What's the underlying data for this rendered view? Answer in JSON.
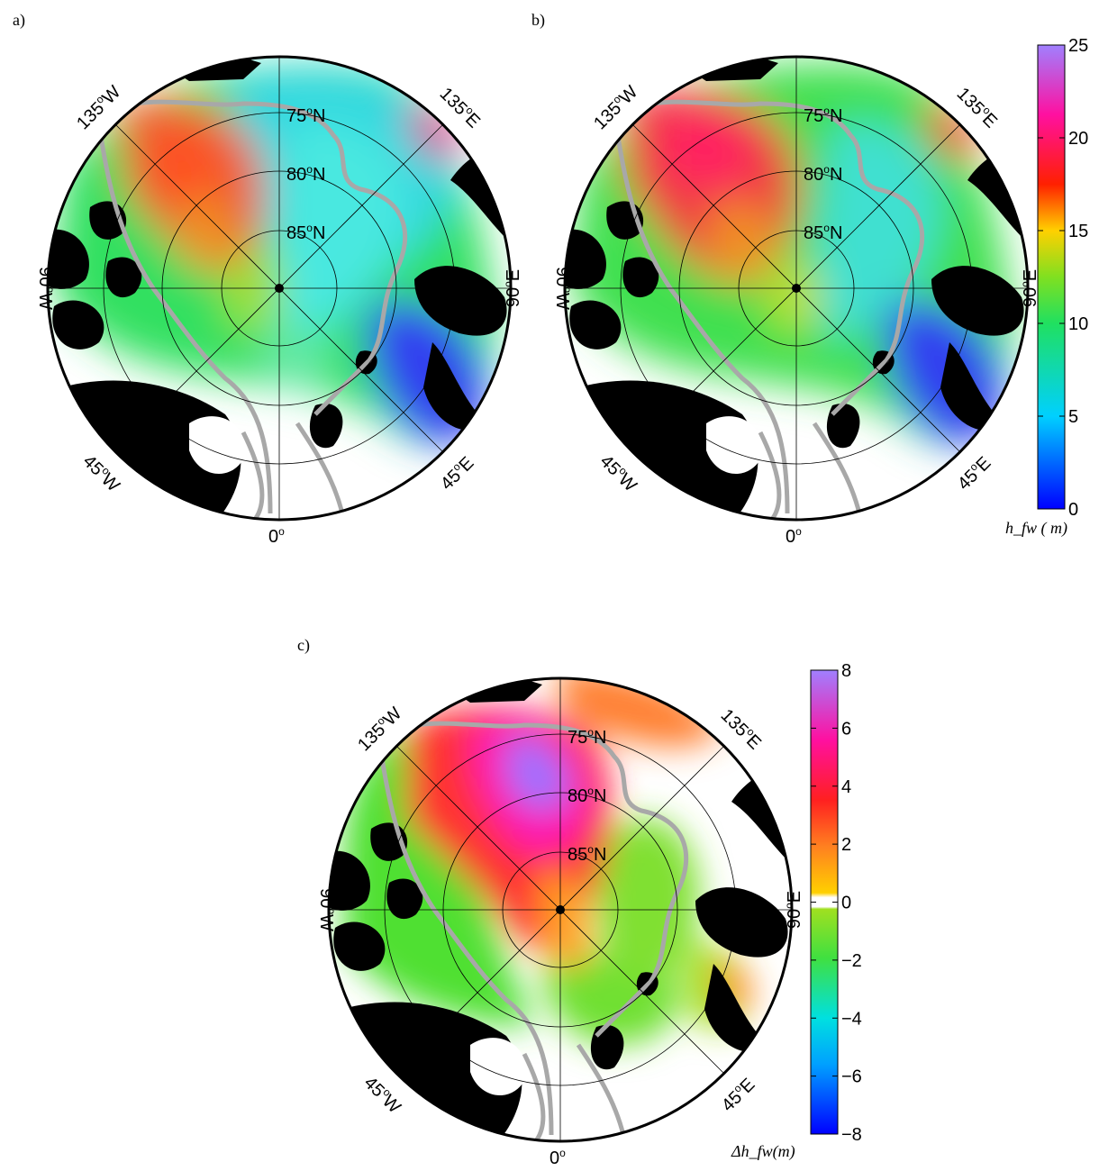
{
  "panels": [
    {
      "label": "a)",
      "lat_labels": [
        "75",
        "80",
        "85"
      ],
      "lat_suffix": "N",
      "lon_labels": {
        "w135": "135",
        "e135": "135",
        "w90": "90",
        "e90": "90",
        "w45": "45",
        "e45": "45",
        "zero": "0"
      },
      "hemi": {
        "w": "W",
        "e": "E"
      }
    },
    {
      "label": "b)",
      "lat_labels": [
        "75",
        "80",
        "85"
      ],
      "lat_suffix": "N",
      "lon_labels": {
        "w135": "135",
        "e135": "135",
        "w90": "90",
        "e90": "90",
        "w45": "45",
        "e45": "45",
        "zero": "0"
      },
      "hemi": {
        "w": "W",
        "e": "E"
      }
    },
    {
      "label": "c)",
      "lat_labels": [
        "75",
        "80",
        "85"
      ],
      "lat_suffix": "N",
      "lon_labels": {
        "w135": "135",
        "e135": "135",
        "w90": "90",
        "e90": "90",
        "w45": "45",
        "e45": "45",
        "zero": "0"
      },
      "hemi": {
        "w": "W",
        "e": "E"
      }
    }
  ],
  "colorbar_top": {
    "ticks": [
      "0",
      "5",
      "10",
      "15",
      "20",
      "25"
    ],
    "range": [
      0,
      25
    ],
    "label": "h_fw ( m)"
  },
  "colorbar_bottom": {
    "ticks": [
      "−8",
      "−6",
      "−4",
      "−2",
      "0",
      "2",
      "4",
      "6",
      "8"
    ],
    "range": [
      -8,
      8
    ],
    "label": "Δh_fw(m)"
  },
  "colors": {
    "land": "#000000",
    "isobath": "#a8a8a8",
    "grid": "#000000"
  }
}
